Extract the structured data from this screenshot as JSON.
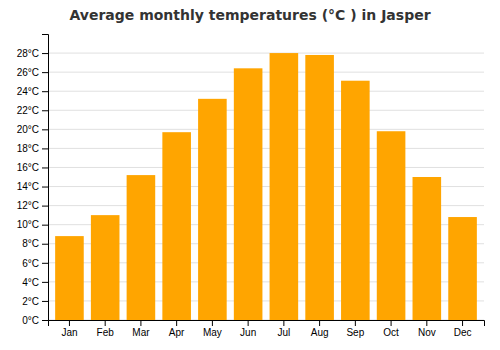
{
  "chart_data": {
    "type": "bar",
    "title": "Average monthly temperatures (°C ) in Jasper",
    "categories": [
      "Jan",
      "Feb",
      "Mar",
      "Apr",
      "May",
      "Jun",
      "Jul",
      "Aug",
      "Sep",
      "Oct",
      "Nov",
      "Dec"
    ],
    "values": [
      8.8,
      11.0,
      15.2,
      19.7,
      23.2,
      26.4,
      28.0,
      27.8,
      25.1,
      19.8,
      15.0,
      10.8
    ],
    "color": "#FFA500",
    "ylim": [
      0,
      30
    ],
    "yticks": [
      {
        "value": 0,
        "label": "0°C"
      },
      {
        "value": 2,
        "label": "2°C"
      },
      {
        "value": 4,
        "label": "4°C"
      },
      {
        "value": 6,
        "label": "6°C"
      },
      {
        "value": 8,
        "label": "8°C"
      },
      {
        "value": 10,
        "label": "10°C"
      },
      {
        "value": 12,
        "label": "12°C"
      },
      {
        "value": 14,
        "label": "14°C"
      },
      {
        "value": 16,
        "label": "16°C"
      },
      {
        "value": 18,
        "label": "18°C"
      },
      {
        "value": 20,
        "label": "20°C"
      },
      {
        "value": 22,
        "label": "22°C"
      },
      {
        "value": 24,
        "label": "24°C"
      },
      {
        "value": 26,
        "label": "26°C"
      },
      {
        "value": 28,
        "label": "28°C"
      }
    ],
    "grid": true
  }
}
